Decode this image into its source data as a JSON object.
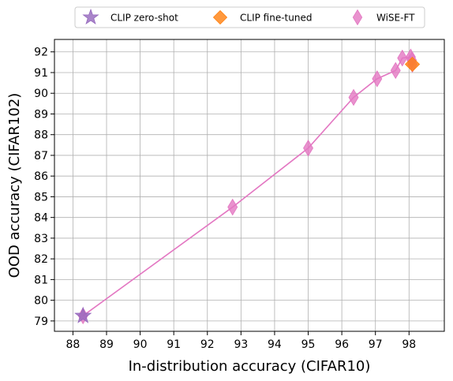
{
  "chart_data": {
    "type": "scatter",
    "xlabel": "In-distribution accuracy (CIFAR10)",
    "ylabel": "OOD accuracy (CIFAR102)",
    "xlim": [
      87.45,
      99.05
    ],
    "ylim": [
      78.5,
      92.6
    ],
    "xticks": [
      88,
      89,
      90,
      91,
      92,
      93,
      94,
      95,
      96,
      97,
      98
    ],
    "yticks": [
      79,
      80,
      81,
      82,
      83,
      84,
      85,
      86,
      87,
      88,
      89,
      90,
      91,
      92
    ],
    "grid": true,
    "legend_position": "top-center",
    "series": [
      {
        "name": "CLIP zero-shot",
        "marker": "star",
        "color": "#9467bd",
        "points": [
          {
            "x": 88.3,
            "y": 79.25
          }
        ]
      },
      {
        "name": "CLIP fine-tuned",
        "marker": "diamond",
        "color": "#ff7f0e",
        "points": [
          {
            "x": 98.1,
            "y": 91.4
          }
        ]
      },
      {
        "name": "WiSE-FT",
        "marker": "thin-diamond",
        "color": "#e377c2",
        "line": true,
        "points": [
          {
            "x": 88.3,
            "y": 79.25
          },
          {
            "x": 92.75,
            "y": 84.5
          },
          {
            "x": 95.0,
            "y": 87.35
          },
          {
            "x": 96.35,
            "y": 89.8
          },
          {
            "x": 97.05,
            "y": 90.7
          },
          {
            "x": 97.6,
            "y": 91.1
          },
          {
            "x": 97.8,
            "y": 91.7
          },
          {
            "x": 98.05,
            "y": 91.75
          },
          {
            "x": 98.08,
            "y": 91.6
          },
          {
            "x": 98.1,
            "y": 91.4
          }
        ]
      }
    ]
  }
}
